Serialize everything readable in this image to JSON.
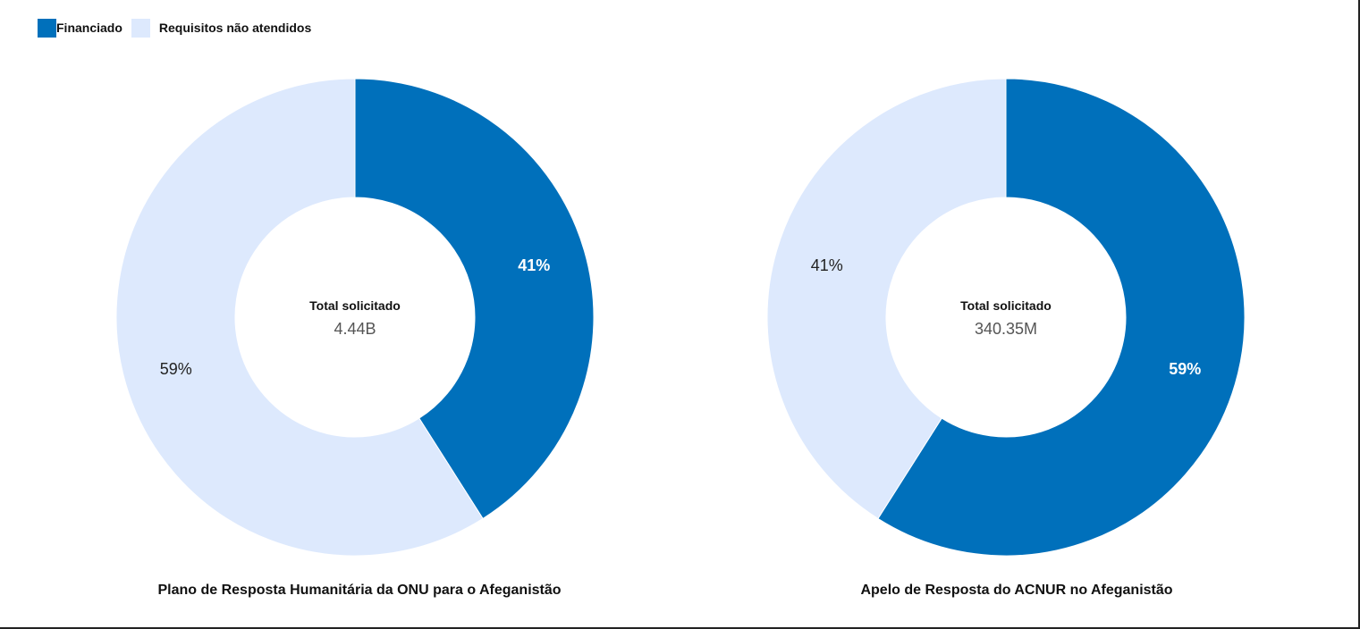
{
  "legend": {
    "items": [
      {
        "label": "Financiado",
        "color": "#0070BB"
      },
      {
        "label": "Requisitos não atendidos",
        "color": "#DDE9FD"
      }
    ]
  },
  "chart_data": [
    {
      "type": "pie",
      "variant": "donut",
      "title": "Plano de Resposta Humanitária da ONU para o Afeganistão",
      "center_label": "Total solicitado",
      "center_value": "4.44B",
      "slices": [
        {
          "name": "Financiado",
          "value": 41,
          "label": "41%",
          "color": "#0070BB"
        },
        {
          "name": "Requisitos não atendidos",
          "value": 59,
          "label": "59%",
          "color": "#DDE9FD"
        }
      ]
    },
    {
      "type": "pie",
      "variant": "donut",
      "title": "Apelo de Resposta do ACNUR no Afeganistão",
      "center_label": "Total solicitado",
      "center_value": "340.35M",
      "slices": [
        {
          "name": "Financiado",
          "value": 59,
          "label": "59%",
          "color": "#0070BB"
        },
        {
          "name": "Requisitos não atendidos",
          "value": 41,
          "label": "41%",
          "color": "#DDE9FD"
        }
      ]
    }
  ]
}
